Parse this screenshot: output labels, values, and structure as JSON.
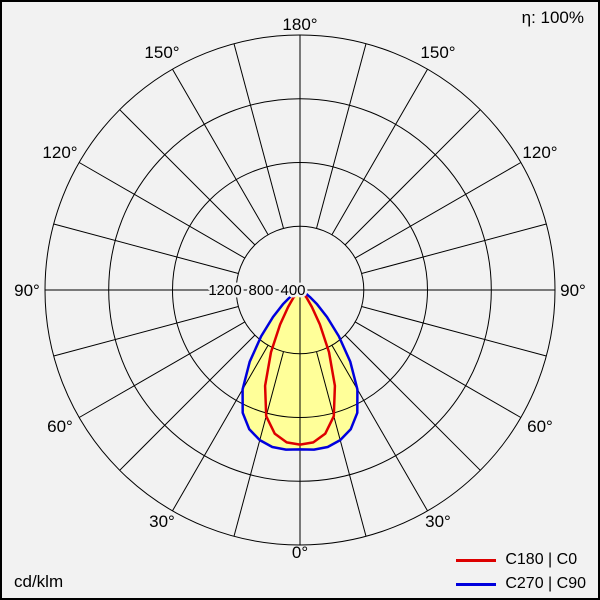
{
  "header": {
    "efficiency": "η: 100%"
  },
  "footer": {
    "unit": "cd/klm"
  },
  "legend": {
    "items": [
      {
        "label": "C180 | C0",
        "color": "#dd0000"
      },
      {
        "label": "C270 | C90",
        "color": "#0000dd"
      }
    ]
  },
  "chart_data": {
    "type": "line",
    "variant": "polar-photometric-luminous-intensity",
    "units": "cd/klm",
    "efficiency_percent": 100,
    "grid": true,
    "angle_step_deg": 15,
    "rings": {
      "values": [
        400,
        800,
        1200,
        1600
      ],
      "max": 1600
    },
    "ring_labels": [
      "1200",
      "800",
      "400"
    ],
    "angle_labels": [
      "180°",
      "150°",
      "150°",
      "120°",
      "120°",
      "90°",
      "90°",
      "60°",
      "60°",
      "30°",
      "30°",
      "0°"
    ],
    "gamma_deg": [
      0,
      5,
      10,
      15,
      20,
      25,
      30,
      35,
      40,
      45,
      50,
      55,
      60,
      65,
      70,
      75,
      80,
      85,
      90
    ],
    "series": [
      {
        "name": "C180 | C0",
        "color": "#dd0000",
        "values": [
          970,
          960,
          915,
          820,
          640,
          430,
          250,
          130,
          65,
          30,
          12,
          5,
          2,
          0,
          0,
          0,
          0,
          0,
          0
        ]
      },
      {
        "name": "C270 | C90",
        "color": "#0000dd",
        "values": [
          1000,
          1005,
          1000,
          975,
          930,
          850,
          720,
          550,
          380,
          240,
          140,
          75,
          38,
          18,
          8,
          3,
          0,
          0,
          0
        ]
      }
    ],
    "fill_color": "#ffff99",
    "legend_position": "bottom-right"
  }
}
